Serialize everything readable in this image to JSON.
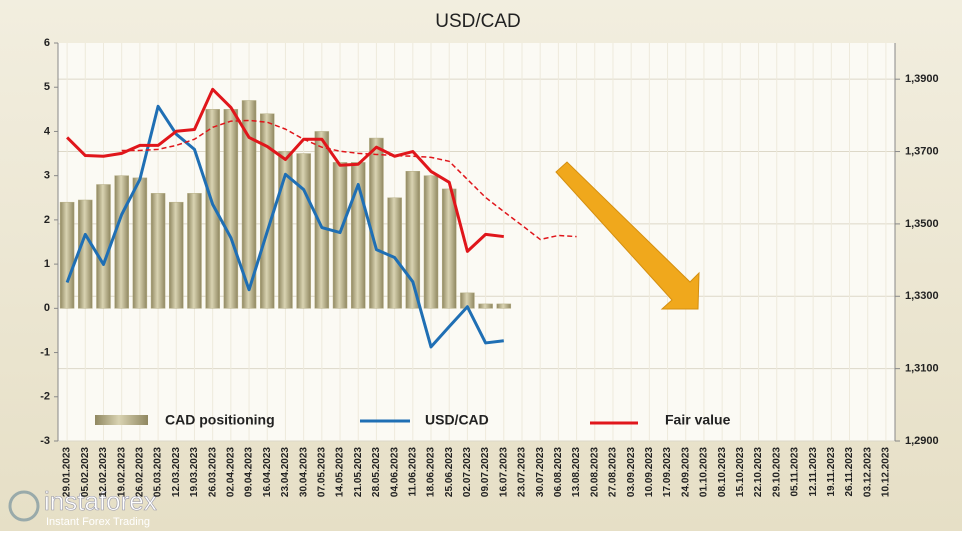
{
  "chart_data": {
    "type": "bar",
    "title": "USD/CAD",
    "categories": [
      "29.01.2023",
      "05.02.2023",
      "12.02.2023",
      "19.02.2023",
      "26.02.2023",
      "05.03.2023",
      "12.03.2023",
      "19.03.2023",
      "26.03.2023",
      "02.04.2023",
      "09.04.2023",
      "16.04.2023",
      "23.04.2023",
      "30.04.2023",
      "07.05.2023",
      "14.05.2023",
      "21.05.2023",
      "28.05.2023",
      "04.06.2023",
      "11.06.2023",
      "18.06.2023",
      "25.06.2023",
      "02.07.2023",
      "09.07.2023",
      "16.07.2023",
      "23.07.2023",
      "30.07.2023",
      "06.08.2023",
      "13.08.2023",
      "20.08.2023",
      "27.08.2023",
      "03.09.2023",
      "10.09.2023",
      "17.09.2023",
      "24.09.2023",
      "01.10.2023",
      "08.10.2023",
      "15.10.2023",
      "22.10.2023",
      "29.10.2023",
      "05.11.2023",
      "12.11.2023",
      "19.11.2023",
      "26.11.2023",
      "03.12.2023",
      "10.12.2023"
    ],
    "series": [
      {
        "name": "CAD positioning",
        "type": "bar",
        "color": "#b5ad84",
        "values": [
          2.4,
          2.45,
          2.8,
          3.0,
          2.95,
          2.6,
          2.4,
          2.6,
          4.5,
          4.5,
          4.7,
          4.4,
          3.55,
          3.5,
          4.0,
          3.3,
          3.3,
          3.85,
          2.5,
          3.1,
          3.0,
          2.7,
          0.35,
          0.1,
          0.1,
          null,
          null,
          null,
          null,
          null,
          null,
          null,
          null,
          null,
          null,
          null,
          null,
          null,
          null,
          null,
          null,
          null,
          null,
          null,
          null,
          null
        ]
      },
      {
        "name": "USD/CAD",
        "type": "line",
        "axis": "y2",
        "color": "#1f6fb4",
        "values": [
          1.3338,
          1.3471,
          1.3388,
          1.3526,
          1.3623,
          1.3825,
          1.3748,
          1.3706,
          1.3554,
          1.3462,
          1.3318,
          1.3479,
          1.3637,
          1.3595,
          1.349,
          1.3476,
          1.3609,
          1.3429,
          1.3407,
          1.334,
          1.316,
          1.3216,
          1.3271,
          1.3171,
          1.3177,
          null,
          null,
          null,
          null,
          null,
          null,
          null,
          null,
          null,
          null,
          null,
          null,
          null,
          null,
          null,
          null,
          null,
          null,
          null,
          null,
          null
        ]
      },
      {
        "name": "Fair value",
        "type": "line",
        "axis": "y2",
        "color": "#e0161b",
        "values": [
          1.3739,
          1.3689,
          1.3687,
          1.3695,
          1.3717,
          1.3717,
          1.3756,
          1.3761,
          1.3872,
          1.3822,
          1.3739,
          1.3714,
          1.3678,
          1.3734,
          1.3734,
          1.3662,
          1.3665,
          1.3712,
          1.3687,
          1.37,
          1.3645,
          1.3615,
          1.3424,
          1.3471,
          1.3465,
          null,
          null,
          null,
          null,
          null,
          null,
          null,
          null,
          null,
          null,
          null,
          null,
          null,
          null,
          null,
          null,
          null,
          null,
          null,
          null,
          null
        ]
      },
      {
        "type": "line",
        "axis": "y2",
        "color": "#e0161b",
        "dashed": true,
        "values": [
          null,
          null,
          null,
          1.3703,
          1.3703,
          1.3706,
          1.3717,
          1.3734,
          1.3767,
          1.3784,
          1.3786,
          1.3781,
          1.3762,
          1.3734,
          1.3712,
          1.3701,
          1.3695,
          1.3692,
          1.3689,
          1.3687,
          1.3684,
          1.3673,
          1.3623,
          1.3573,
          1.3534,
          1.3496,
          1.3457,
          1.3468,
          1.3465,
          null,
          null,
          null,
          null,
          null,
          null,
          null,
          null,
          null,
          null,
          null,
          null,
          null,
          null,
          null,
          null,
          null
        ]
      }
    ],
    "ylim": [
      -3,
      6
    ],
    "yticks": [
      -3,
      -2,
      -1,
      0,
      1,
      2,
      3,
      4,
      5,
      6
    ],
    "y2lim": [
      1.29,
      1.4
    ],
    "y2ticks": [
      {
        "value": 1.29,
        "label": "1,2900"
      },
      {
        "value": 1.31,
        "label": "1,3100"
      },
      {
        "value": 1.33,
        "label": "1,3300"
      },
      {
        "value": 1.35,
        "label": "1,3500"
      },
      {
        "value": 1.37,
        "label": "1,3700"
      },
      {
        "value": 1.39,
        "label": "1,3900"
      }
    ],
    "grid": true,
    "legend": "bottom"
  },
  "watermark": {
    "brand": "instaforex",
    "tagline": "Instant Forex Trading"
  }
}
